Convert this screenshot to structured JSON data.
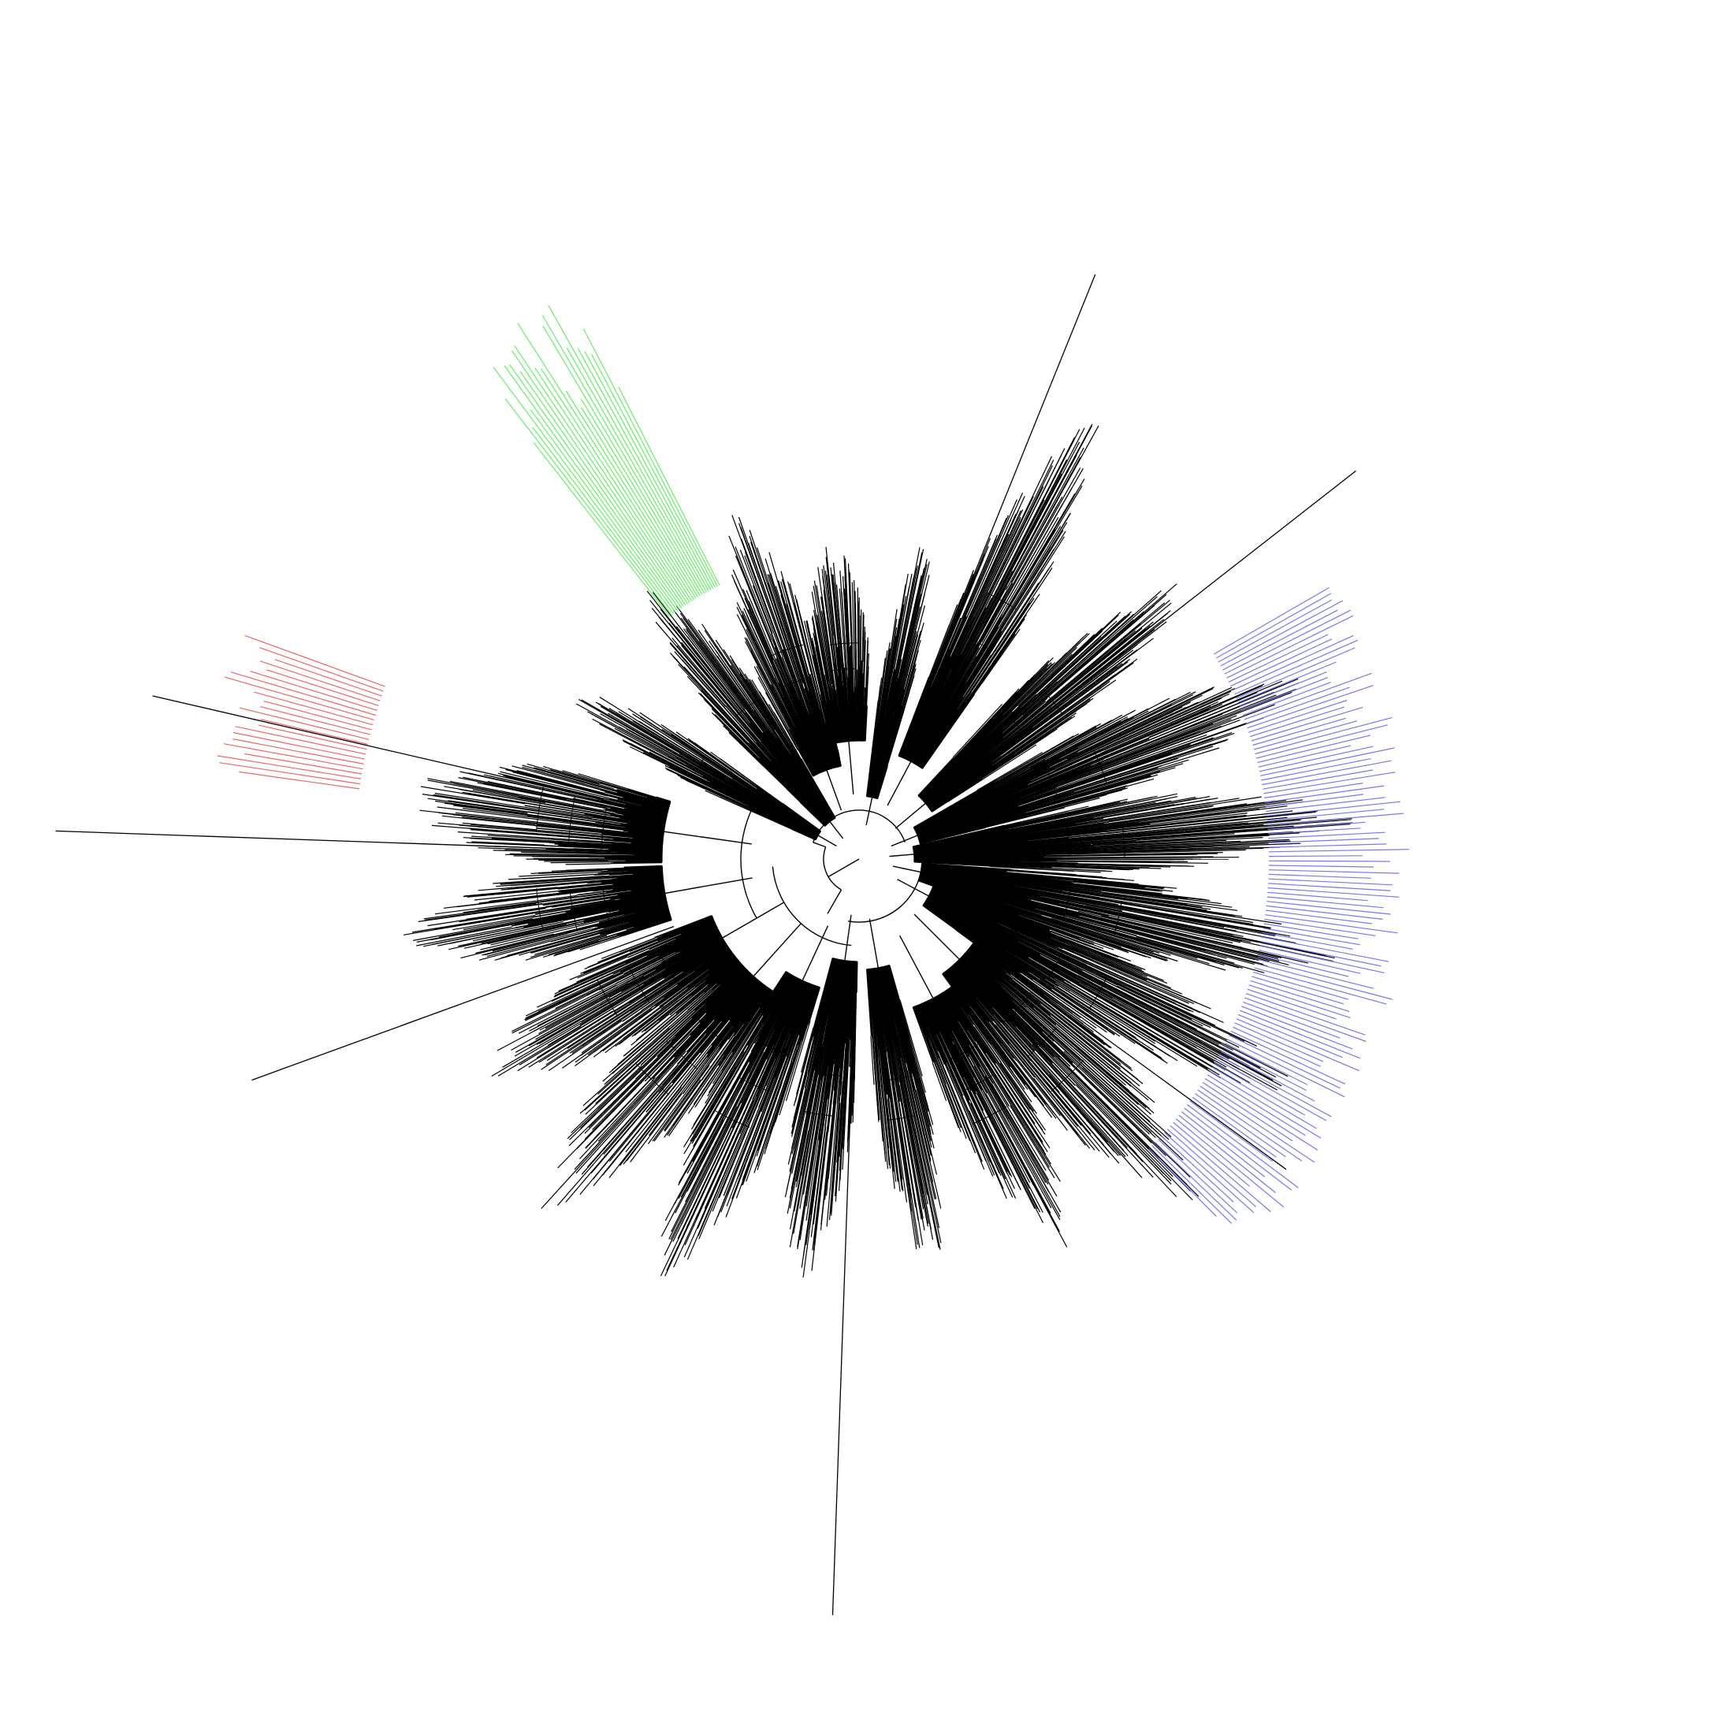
{
  "figure": {
    "kind": "circular phylogenetic tree",
    "background": "#ffffff",
    "branch_color": "#000000",
    "printed_text": []
  },
  "clade_highlights": [
    {
      "id": "clade-blue",
      "color": "#7777ee",
      "position": "right"
    },
    {
      "id": "clade-green",
      "color": "#66ee66",
      "position": "upper-left"
    },
    {
      "id": "clade-red",
      "color": "#ee6666",
      "position": "left"
    }
  ]
}
